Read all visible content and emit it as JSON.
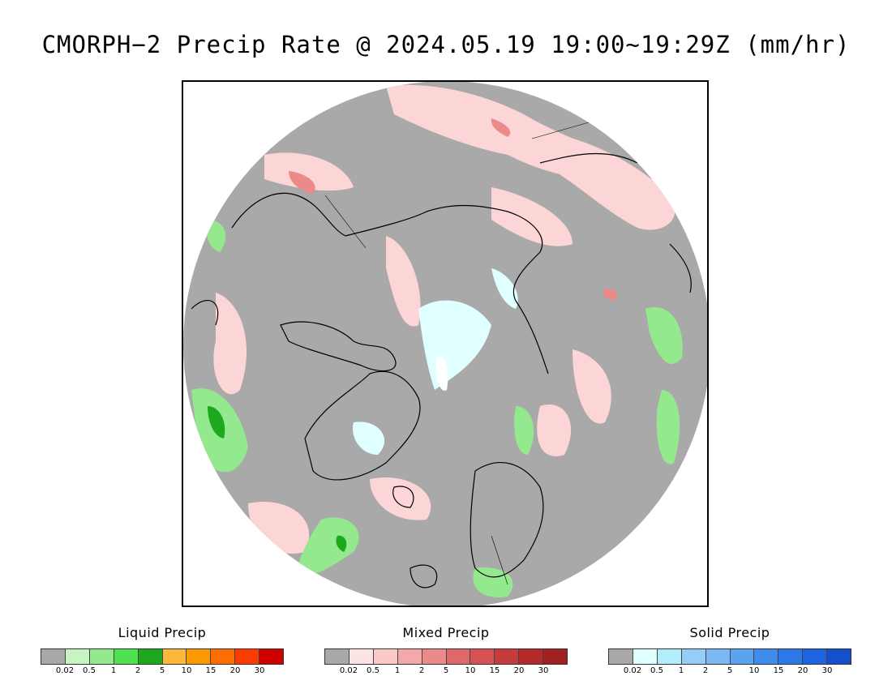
{
  "title": "CMORPH−2 Precip Rate @ 2024.05.19 19:00∼19:29Z (mm/hr)",
  "map": {
    "projection": "north-polar-stereographic",
    "background_color": "#a9a9a9",
    "coastline_color": "#000000"
  },
  "legends": [
    {
      "name": "liquid",
      "title": "Liquid Precip",
      "colors": [
        "#a9a9a9",
        "#c6f5c1",
        "#94e88d",
        "#4fe24f",
        "#1ea81e",
        "#fdb73a",
        "#fd9a00",
        "#fd6d00",
        "#fd3a00",
        "#cf0000"
      ],
      "ticks": [
        "0.02",
        "0.5",
        "1",
        "2",
        "5",
        "10",
        "15",
        "20",
        "30"
      ]
    },
    {
      "name": "mixed",
      "title": "Mixed Precip",
      "colors": [
        "#a9a9a9",
        "#fde3e3",
        "#fcc9c9",
        "#f4a8a8",
        "#ec8989",
        "#e06868",
        "#d65252",
        "#c83b3b",
        "#b42a2a",
        "#a12020"
      ],
      "ticks": [
        "0.02",
        "0.5",
        "1",
        "2",
        "5",
        "10",
        "15",
        "20",
        "30"
      ]
    },
    {
      "name": "solid",
      "title": "Solid Precip",
      "colors": [
        "#a9a9a9",
        "#e0ffff",
        "#b2eefa",
        "#94cdf5",
        "#79b8f2",
        "#5aa3ee",
        "#3f8ced",
        "#2c78e8",
        "#1e64e0",
        "#1450cc"
      ],
      "ticks": [
        "0.02",
        "0.5",
        "1",
        "2",
        "5",
        "10",
        "15",
        "20",
        "30"
      ]
    }
  ]
}
